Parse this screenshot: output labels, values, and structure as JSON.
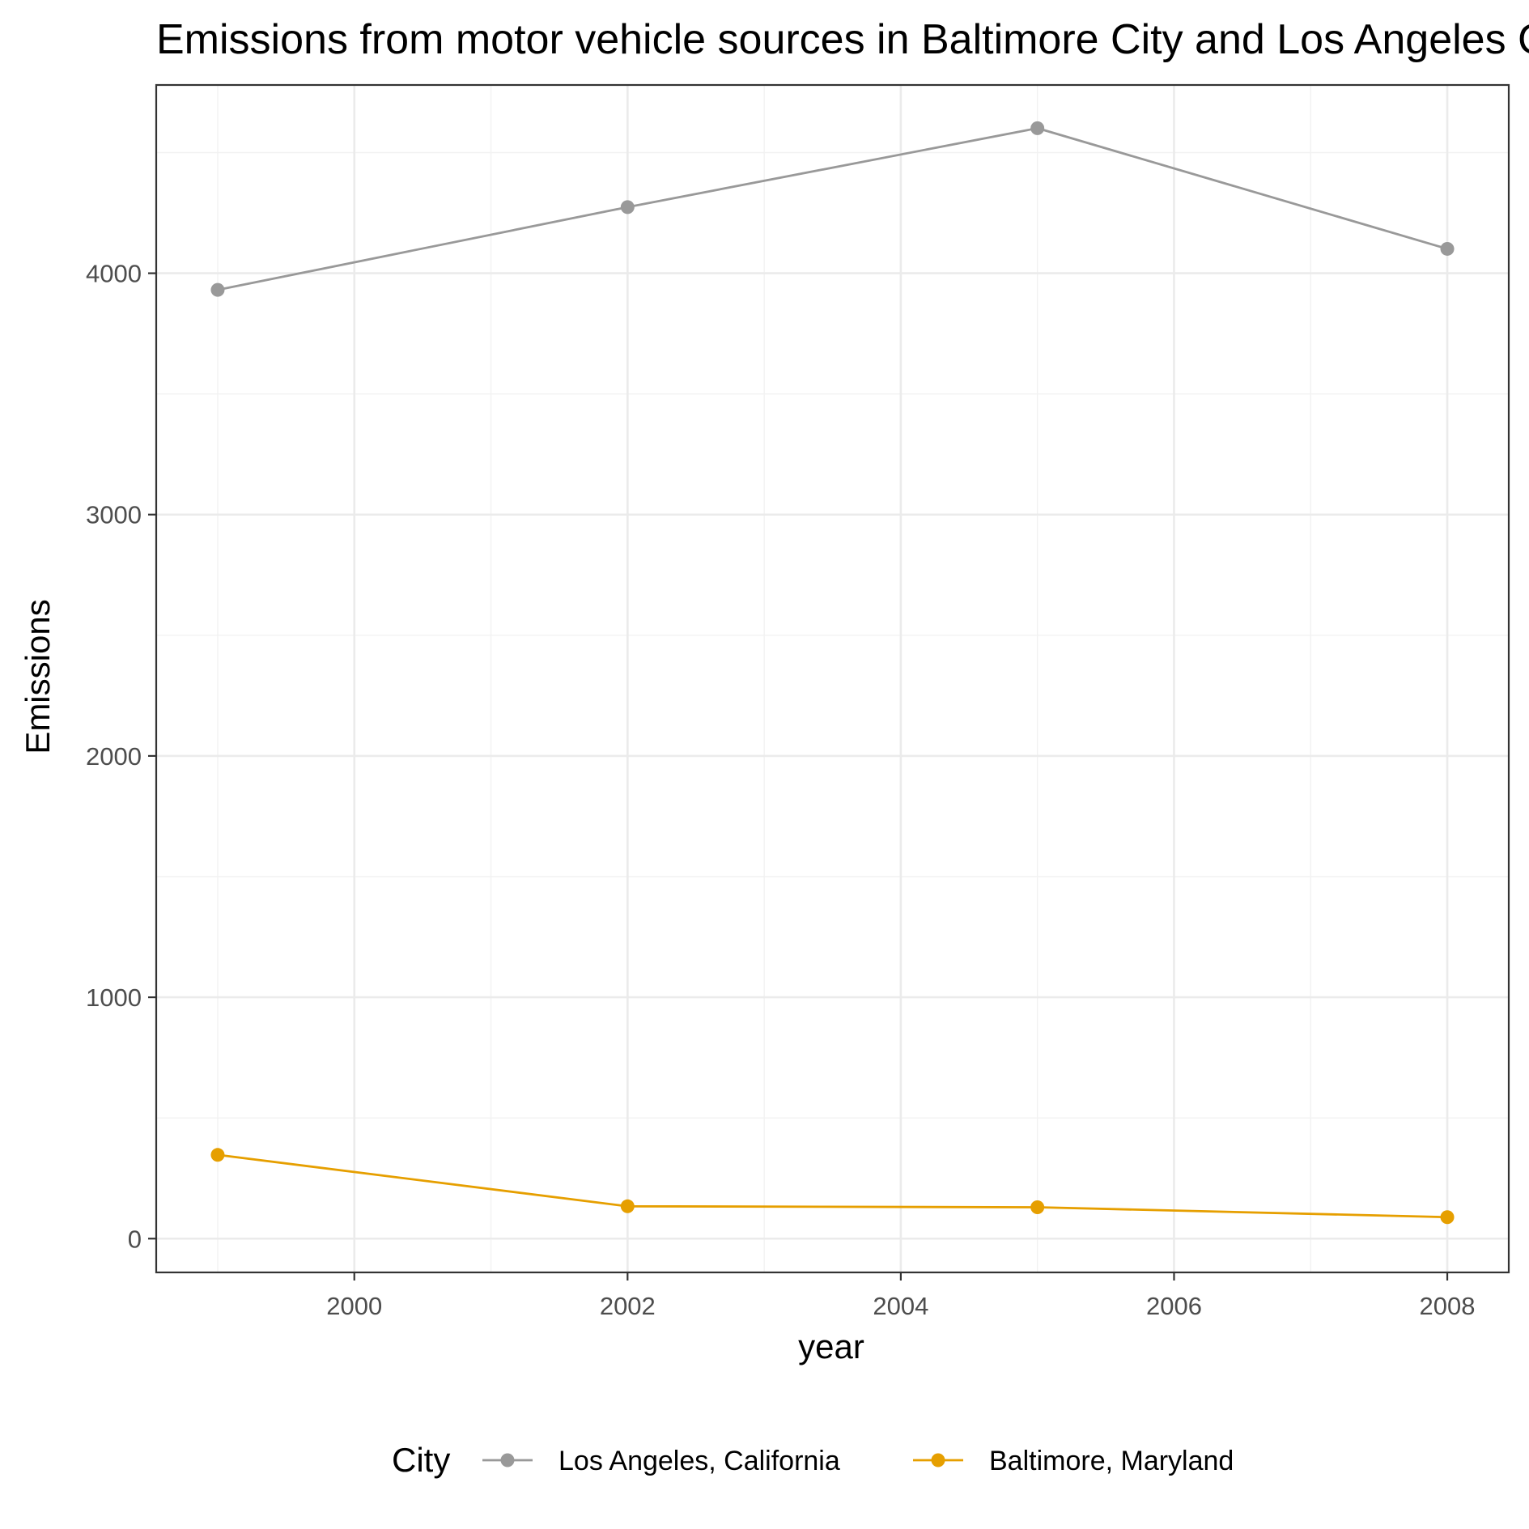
{
  "chart_data": {
    "type": "line",
    "title": "Emissions from motor vehicle sources in Baltimore City and Los Angeles County",
    "xlabel": "year",
    "ylabel": "Emissions",
    "xlim": [
      1998.55,
      2008.45
    ],
    "ylim": [
      -140,
      4780
    ],
    "x_ticks": [
      2000,
      2002,
      2004,
      2006,
      2008
    ],
    "x_ticks_minor": [
      1999,
      2001,
      2003,
      2005,
      2007
    ],
    "y_ticks": [
      0,
      1000,
      2000,
      3000,
      4000
    ],
    "y_ticks_minor": [
      500,
      1500,
      2500,
      3500,
      4500
    ],
    "grid": true,
    "legend": {
      "title": "City",
      "position": "bottom"
    },
    "series": [
      {
        "name": "Los Angeles, California",
        "color": "#999999",
        "x": [
          1999,
          2002,
          2005,
          2008
        ],
        "values": [
          3931,
          4274,
          4601,
          4101
        ]
      },
      {
        "name": "Baltimore, Maryland",
        "color": "#E69F00",
        "x": [
          1999,
          2002,
          2005,
          2008
        ],
        "values": [
          347,
          134,
          130,
          89
        ]
      }
    ]
  }
}
